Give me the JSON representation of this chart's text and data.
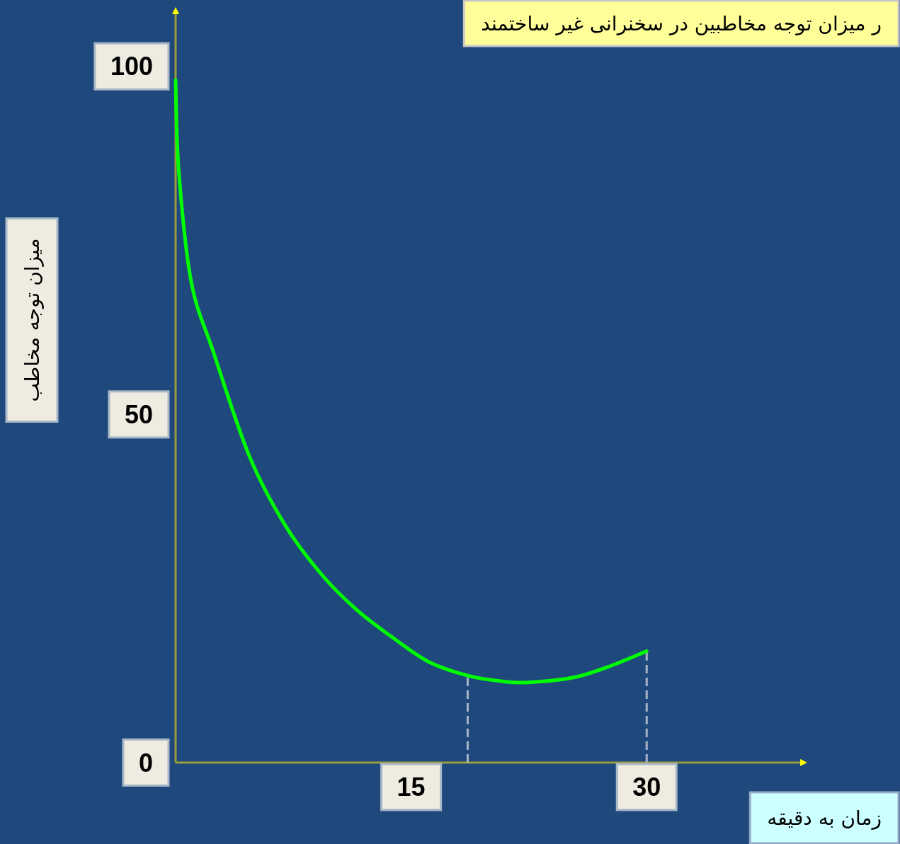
{
  "chart_data": {
    "type": "line",
    "title": "ر میزان توجه مخاطبین در سخنرانی غیر ساختمند",
    "xlabel": "زمان به دقیقه",
    "ylabel": "میزان توجه مخاطب",
    "x": [
      0,
      0.2,
      1.0,
      2.4,
      4.7,
      7.0,
      9.3,
      11.5,
      13.8,
      16.1,
      18.6,
      20.7,
      22.3,
      25.3,
      27.6,
      30
    ],
    "series": [
      {
        "color": "#00ff00",
        "values": [
          98,
          85,
          69,
          59,
          44,
          34,
          27,
          22,
          18,
          14.5,
          12.5,
          11.7,
          11.5,
          12.2,
          13.8,
          16
        ]
      }
    ],
    "xlim": [
      0,
      40
    ],
    "ylim": [
      0,
      108
    ],
    "xticks": [
      15,
      30
    ],
    "yticks": [
      0,
      50,
      100
    ],
    "marker": "none",
    "line_style": "solid",
    "ref_lines": [
      {
        "axis": "x",
        "value": 18.6,
        "color": "#a6b4c8",
        "line_style": "dashed"
      },
      {
        "axis": "x",
        "value": 30,
        "color": "#a6b4c8",
        "line_style": "dashed"
      }
    ]
  }
}
